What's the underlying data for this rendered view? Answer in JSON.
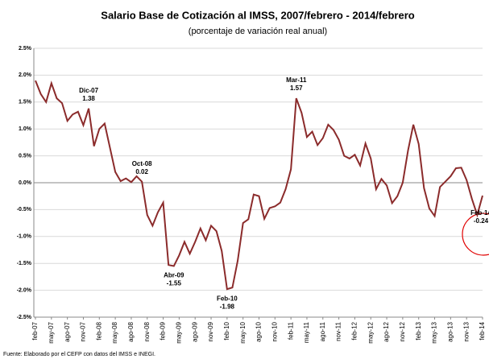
{
  "chart_data": {
    "type": "line",
    "title": "Salario Base de Cotización al IMSS, 2007/febrero - 2014/febrero",
    "subtitle": "(porcentaje de variación real anual)",
    "source": "Fuente: Elaborado por el CEFP con datos del IMSS e INEGI.",
    "categories": [
      "feb-07",
      null,
      null,
      "may-07",
      null,
      null,
      "ago-07",
      null,
      null,
      "nov-07",
      null,
      null,
      "feb-08",
      null,
      null,
      "may-08",
      null,
      null,
      "ago-08",
      null,
      null,
      "nov-08",
      null,
      null,
      "feb-09",
      null,
      null,
      "may-09",
      null,
      null,
      "ago-09",
      null,
      null,
      "nov-09",
      null,
      null,
      "feb-10",
      null,
      null,
      "may-10",
      null,
      null,
      "ago-10",
      null,
      null,
      "nov-10",
      null,
      null,
      "feb-11",
      null,
      null,
      "may-11",
      null,
      null,
      "ago-11",
      null,
      null,
      "nov-11",
      null,
      null,
      "feb-12",
      null,
      null,
      "may-12",
      null,
      null,
      "ago-12",
      null,
      null,
      "nov-12",
      null,
      null,
      "feb-13",
      null,
      null,
      "may-13",
      null,
      null,
      "ago-13",
      null,
      null,
      "nov-13",
      null,
      null,
      "feb-14"
    ],
    "series": [
      {
        "name": "Salario Base de Cotización",
        "color": "#8b2b2b",
        "values": [
          1.9,
          1.65,
          1.5,
          1.85,
          1.57,
          1.48,
          1.15,
          1.27,
          1.32,
          1.07,
          1.38,
          0.68,
          1.0,
          1.1,
          0.65,
          0.2,
          0.03,
          0.08,
          0.01,
          0.12,
          0.02,
          -0.6,
          -0.8,
          -0.55,
          -0.37,
          -1.53,
          -1.55,
          -1.35,
          -1.1,
          -1.32,
          -1.1,
          -0.85,
          -1.07,
          -0.8,
          -0.9,
          -1.27,
          -1.98,
          -1.95,
          -1.45,
          -0.75,
          -0.68,
          -0.22,
          -0.25,
          -0.67,
          -0.47,
          -0.44,
          -0.37,
          -0.12,
          0.25,
          1.57,
          1.3,
          0.85,
          0.95,
          0.7,
          0.83,
          1.08,
          0.98,
          0.8,
          0.5,
          0.45,
          0.52,
          0.32,
          0.73,
          0.45,
          -0.12,
          0.07,
          -0.05,
          -0.38,
          -0.25,
          0.0,
          0.6,
          1.08,
          0.72,
          -0.1,
          -0.48,
          -0.62,
          -0.08,
          0.02,
          0.12,
          0.27,
          0.28,
          0.05,
          -0.3,
          -0.6,
          -0.24
        ]
      }
    ],
    "point_labels": [
      null,
      null,
      null,
      null,
      null,
      null,
      null,
      null,
      null,
      null,
      "Dic-07",
      null,
      null,
      null,
      null,
      null,
      null,
      null,
      null,
      null,
      "Oct-08",
      null,
      null,
      null,
      null,
      null,
      "Abr-09",
      null,
      null,
      null,
      null,
      null,
      null,
      null,
      null,
      null,
      "Feb-10",
      null,
      null,
      null,
      null,
      null,
      null,
      null,
      null,
      null,
      null,
      null,
      null,
      "Mar-11",
      null,
      null,
      null,
      null,
      null,
      null,
      null,
      null,
      null,
      null,
      null,
      null,
      null,
      null,
      null,
      null,
      null,
      null,
      null,
      null,
      null,
      null,
      null,
      null,
      null,
      null,
      null,
      null,
      null,
      null,
      null,
      null,
      null,
      null,
      "Feb-14"
    ],
    "ylim": [
      -2.5,
      2.5
    ],
    "yticks": [
      {
        "value": -2.5,
        "label": "-2.5%"
      },
      {
        "value": -2.0,
        "label": "-2.0%"
      },
      {
        "value": -1.5,
        "label": "-1.5%"
      },
      {
        "value": -1.0,
        "label": "-1.0%"
      },
      {
        "value": -0.5,
        "label": "-0.5%"
      },
      {
        "value": 0,
        "label": "0.0%"
      },
      {
        "value": 0.5,
        "label": "0.5%"
      },
      {
        "value": 1.0,
        "label": "1.0%"
      },
      {
        "value": 1.5,
        "label": "1.5%"
      },
      {
        "value": 2.0,
        "label": "2.0%"
      },
      {
        "value": 2.5,
        "label": "2.5%"
      }
    ],
    "grid": true
  }
}
